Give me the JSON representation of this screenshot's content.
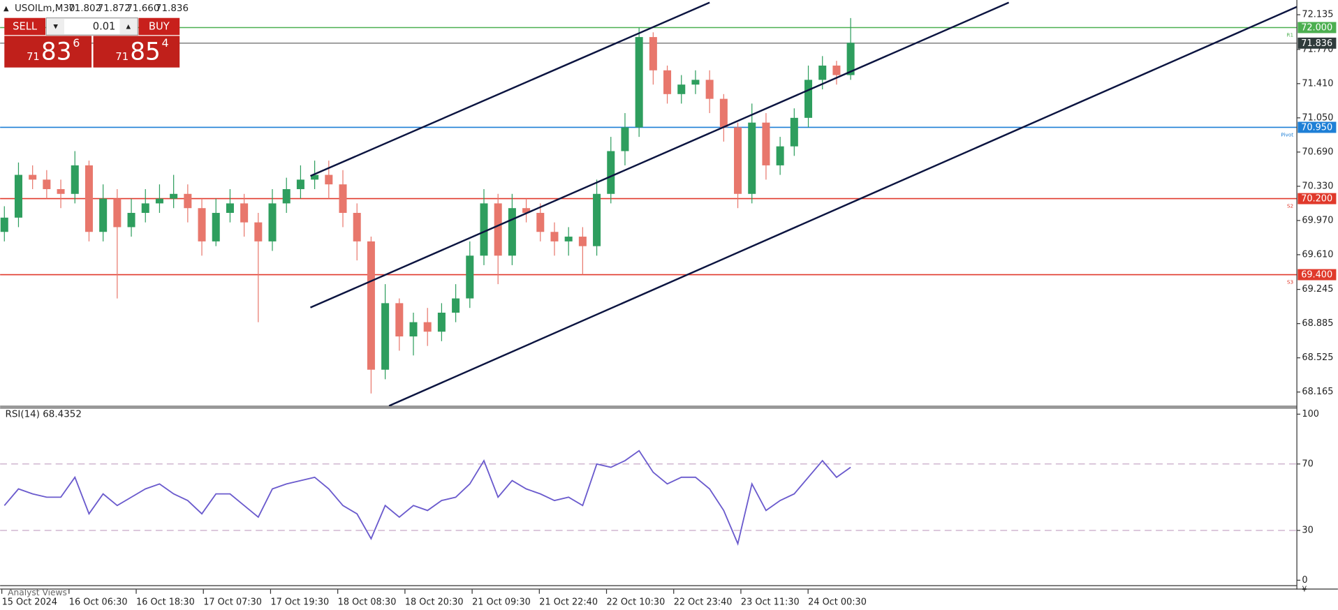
{
  "header": {
    "symbol": "USOILm,M30",
    "ohlc": [
      "71.802",
      "71.872",
      "71.660",
      "71.836"
    ]
  },
  "trade_panel": {
    "sell": "SELL",
    "volume": "0.01",
    "buy": "BUY",
    "sell_price": {
      "big_figure": "71",
      "pips": "83",
      "point": "6"
    },
    "buy_price": {
      "big_figure": "71",
      "pips": "85",
      "point": "4"
    }
  },
  "chart_data": {
    "type": "candlestick",
    "open": [
      69.85,
      70.0,
      70.45,
      70.4,
      70.3,
      70.25,
      70.55,
      69.85,
      70.2,
      69.9,
      70.05,
      70.15,
      70.2,
      70.25,
      70.1,
      69.75,
      70.05,
      70.15,
      69.95,
      69.75,
      70.15,
      70.3,
      70.4,
      70.45,
      70.35,
      70.05,
      69.75,
      68.4,
      69.1,
      68.75,
      68.9,
      68.8,
      69.0,
      69.15,
      69.6,
      70.15,
      69.6,
      70.1,
      70.05,
      69.85,
      69.75,
      69.8,
      69.7,
      70.25,
      70.7,
      70.95,
      71.9,
      71.55,
      71.3,
      71.4,
      71.45,
      71.25,
      70.95,
      70.25,
      71.0,
      70.55,
      70.75,
      71.05,
      71.45,
      71.6,
      71.5
    ],
    "high": [
      70.12,
      70.58,
      70.55,
      70.5,
      70.4,
      70.7,
      70.6,
      70.35,
      70.3,
      70.2,
      70.3,
      70.35,
      70.45,
      70.35,
      70.2,
      70.2,
      70.3,
      70.25,
      70.05,
      70.3,
      70.42,
      70.55,
      70.6,
      70.6,
      70.5,
      70.15,
      69.8,
      69.3,
      69.15,
      69.0,
      69.05,
      69.1,
      69.3,
      69.75,
      70.3,
      70.25,
      70.25,
      70.2,
      70.15,
      69.95,
      69.9,
      69.9,
      70.4,
      70.85,
      71.1,
      72.0,
      71.95,
      71.6,
      71.5,
      71.55,
      71.55,
      71.3,
      71.0,
      71.2,
      71.1,
      70.85,
      71.15,
      71.6,
      71.7,
      71.65,
      72.1
    ],
    "low": [
      69.75,
      69.9,
      70.3,
      70.2,
      70.1,
      70.15,
      69.75,
      69.75,
      69.15,
      69.8,
      69.95,
      70.05,
      70.1,
      69.95,
      69.6,
      69.7,
      69.95,
      69.8,
      68.9,
      69.65,
      70.05,
      70.2,
      70.3,
      70.2,
      69.9,
      69.55,
      68.15,
      68.3,
      68.6,
      68.55,
      68.65,
      68.7,
      68.9,
      69.05,
      69.5,
      69.3,
      69.5,
      69.95,
      69.75,
      69.6,
      69.6,
      69.4,
      69.6,
      70.15,
      70.55,
      70.85,
      71.4,
      71.2,
      71.2,
      71.3,
      71.1,
      70.8,
      70.1,
      70.15,
      70.4,
      70.45,
      70.65,
      70.95,
      71.35,
      71.4,
      71.45
    ],
    "close": [
      70.0,
      70.45,
      70.4,
      70.3,
      70.25,
      70.55,
      69.85,
      70.2,
      69.9,
      70.05,
      70.15,
      70.2,
      70.25,
      70.1,
      69.75,
      70.05,
      70.15,
      69.95,
      69.75,
      70.15,
      70.3,
      70.4,
      70.45,
      70.35,
      70.05,
      69.75,
      68.4,
      69.1,
      68.75,
      68.9,
      68.8,
      69.0,
      69.15,
      69.6,
      70.15,
      69.6,
      70.1,
      70.05,
      69.85,
      69.75,
      69.8,
      69.7,
      70.25,
      70.7,
      70.95,
      71.9,
      71.55,
      71.3,
      71.4,
      71.45,
      71.25,
      70.95,
      70.25,
      71.0,
      70.55,
      70.75,
      71.05,
      71.45,
      71.6,
      71.5,
      71.84
    ],
    "up_color": "#2e9e5e",
    "down_color": "#e8776c",
    "ylim": [
      68.02,
      72.29
    ],
    "yticks": [
      72.135,
      {
        "value": 71.77,
        "label": "71.770"
      },
      {
        "value": 71.41,
        "label": "71.410"
      },
      {
        "value": 71.05,
        "label": "71.050"
      },
      {
        "value": 70.69,
        "label": "70.690"
      },
      {
        "value": 70.33,
        "label": "70.330"
      },
      {
        "value": 69.97,
        "label": "69.970"
      },
      {
        "value": 69.61,
        "label": "69.610"
      },
      69.245,
      68.885,
      68.525,
      68.165
    ],
    "levels": [
      {
        "value": 72.0,
        "label": "72.000",
        "tag": "R1",
        "color": "#4caf50"
      },
      {
        "value": 71.836,
        "color": "#8a8a8a",
        "box": "#2f3b3b"
      },
      {
        "value": 70.95,
        "label": "70.950",
        "tag": "Pivot",
        "color": "#1e7fd6"
      },
      {
        "value": 70.2,
        "label": "70.200",
        "tag": "S2",
        "color": "#e0392b"
      },
      {
        "value": 69.4,
        "label": "69.400",
        "tag": "S3",
        "color": "#e0392b"
      }
    ],
    "x_labels": [
      "15 Oct 2024",
      "16 Oct 06:30",
      "16 Oct 18:30",
      "17 Oct 07:30",
      "17 Oct 19:30",
      "18 Oct 08:30",
      "18 Oct 20:30",
      "21 Oct 09:30",
      "21 Oct 22:40",
      "22 Oct 10:30",
      "22 Oct 23:40",
      "23 Oct 11:30",
      "24 Oct 00:30"
    ],
    "rsi": {
      "title": "RSI(14) 68.4352",
      "color": "#6a5acd",
      "values": [
        45,
        55,
        52,
        50,
        50,
        62,
        40,
        52,
        45,
        50,
        55,
        58,
        52,
        48,
        40,
        52,
        52,
        45,
        38,
        55,
        58,
        60,
        62,
        55,
        45,
        40,
        25,
        45,
        38,
        45,
        42,
        48,
        50,
        58,
        72,
        50,
        60,
        55,
        52,
        48,
        50,
        45,
        70,
        68,
        72,
        78,
        65,
        58,
        62,
        62,
        55,
        42,
        22,
        58,
        42,
        48,
        52,
        62,
        72,
        62,
        68
      ],
      "ylim": [
        -3,
        104
      ],
      "yticks": [
        100,
        70,
        30,
        0
      ],
      "levels": [
        70,
        30
      ]
    }
  },
  "footer": {
    "tab": "Analyst Views"
  }
}
